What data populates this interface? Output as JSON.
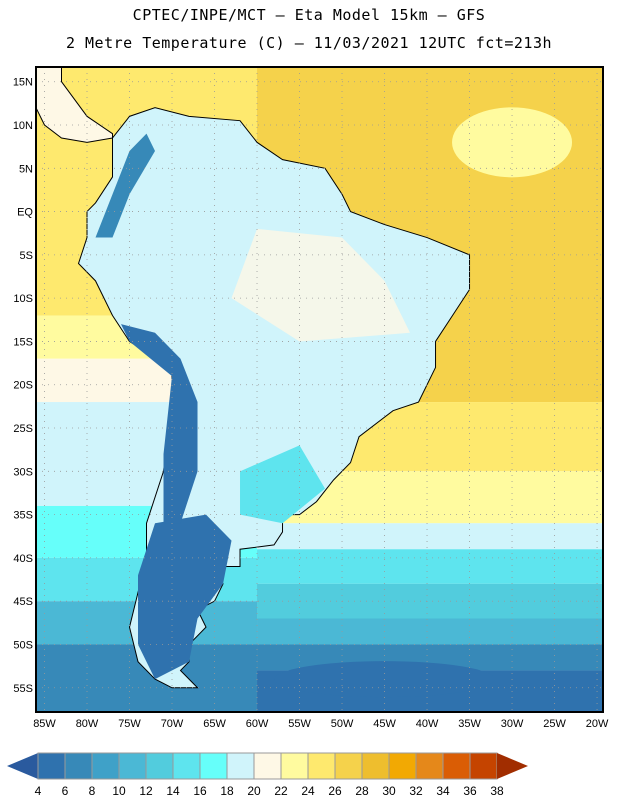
{
  "header": {
    "line1": "CPTEC/INPE/MCT –  Eta Model 15km – GFS",
    "line2": "2 Metre Temperature (C) – 11/03/2021 12UTC fct=213h"
  },
  "map": {
    "lon_range": [
      -86,
      -19.3
    ],
    "lat_range": [
      -57.8,
      16.7
    ],
    "lon_ticks": [
      -85,
      -80,
      -75,
      -70,
      -65,
      -60,
      -55,
      -50,
      -45,
      -40,
      -35,
      -30,
      -25,
      -20
    ],
    "lon_labels": [
      "85W",
      "80W",
      "75W",
      "70W",
      "65W",
      "60W",
      "55W",
      "50W",
      "45W",
      "40W",
      "35W",
      "30W",
      "25W",
      "20W"
    ],
    "lat_ticks": [
      15,
      10,
      5,
      0,
      -5,
      -10,
      -15,
      -20,
      -25,
      -30,
      -35,
      -40,
      -45,
      -50,
      -55
    ],
    "lat_labels": [
      "15N",
      "10N",
      "5N",
      "EQ",
      "5S",
      "10S",
      "15S",
      "20S",
      "25S",
      "30S",
      "35S",
      "40S",
      "45S",
      "50S",
      "55S"
    ]
  },
  "colorbar": {
    "labels": [
      "4",
      "6",
      "8",
      "10",
      "12",
      "14",
      "16",
      "18",
      "20",
      "22",
      "24",
      "26",
      "28",
      "30",
      "32",
      "34",
      "36",
      "38"
    ],
    "under_color": "#2A5A9E",
    "over_color": "#A12D00",
    "colors": [
      "#2F72AE",
      "#3789B8",
      "#3FA1C8",
      "#4BB8D5",
      "#52CCDD",
      "#5EE4EE",
      "#66FFFA",
      "#D0F4FB",
      "#FEF8E6",
      "#FFFB9F",
      "#FEE96E",
      "#F5D24B",
      "#EEBE2E",
      "#F2A903",
      "#E5881A",
      "#DA5D05",
      "#C54400"
    ]
  }
}
